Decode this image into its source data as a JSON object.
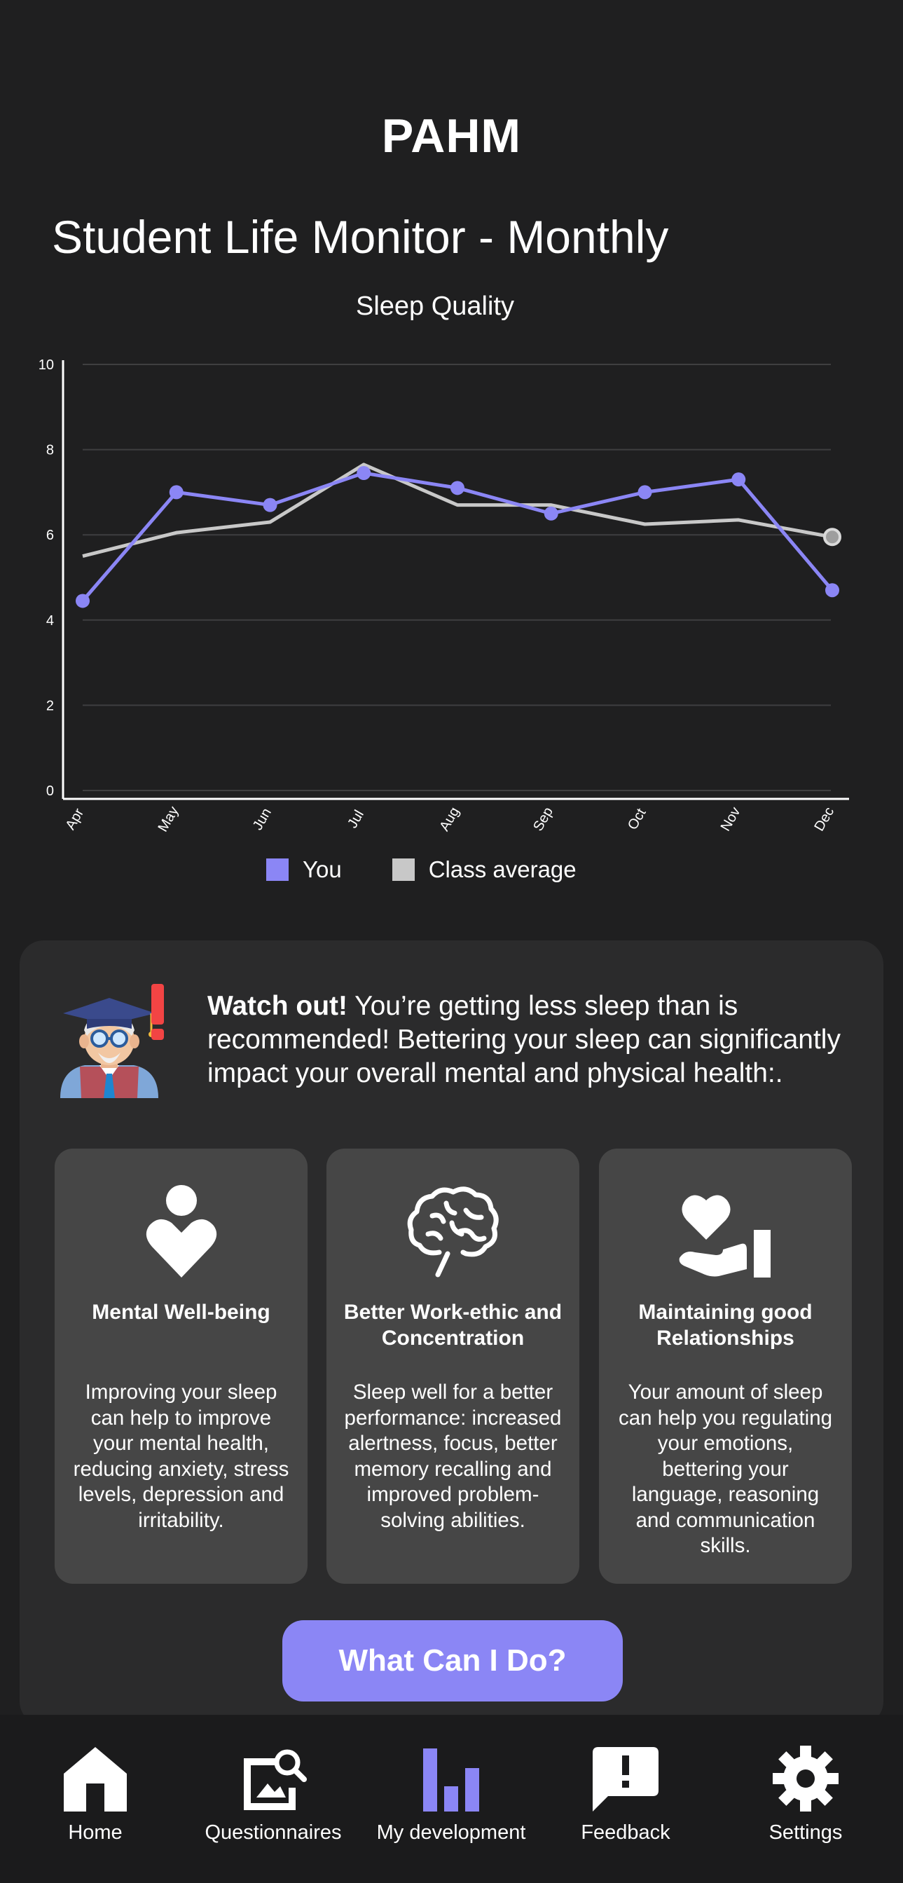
{
  "app": {
    "title": "PAHM"
  },
  "page": {
    "title": "Student Life Monitor - Monthly"
  },
  "chart_data": {
    "type": "line",
    "title": "Sleep Quality",
    "categories": [
      "Apr",
      "May",
      "Jun",
      "Jul",
      "Aug",
      "Sep",
      "Oct",
      "Nov",
      "Dec"
    ],
    "series": [
      {
        "name": "You",
        "color": "#8b86f5",
        "values": [
          4.45,
          7.0,
          6.7,
          7.45,
          7.1,
          6.5,
          7.0,
          7.3,
          4.7
        ]
      },
      {
        "name": "Class average",
        "color": "#c8c8c8",
        "values": [
          5.5,
          6.05,
          6.3,
          7.65,
          6.7,
          6.7,
          6.25,
          6.35,
          5.95
        ]
      }
    ],
    "ylim": [
      0,
      10
    ],
    "yticks": [
      "0",
      "2",
      "4",
      "6",
      "8",
      "10"
    ],
    "grid": true,
    "legend_position": "bottom"
  },
  "advice": {
    "warning_bold": "Watch out!",
    "warning_text": " You’re getting less sleep than is recommended! Bettering your sleep can significantly impact your overall mental and physical health:.",
    "avatar_icon": "professor-warning-icon",
    "benefits": [
      {
        "icon": "heart-person-icon",
        "title": "Mental Well-being",
        "text": "Improving your sleep can help to improve your mental health, reducing anxiety, stress levels, depression and irritability."
      },
      {
        "icon": "brain-icon",
        "title": "Better Work-ethic and Concentration",
        "text": "Sleep well for a better performance: increased alertness, focus, better memory recalling and improved problem-solving abilities."
      },
      {
        "icon": "hand-heart-icon",
        "title": "Maintaining good Relationships",
        "text": "Your amount of sleep can help you regulating your emotions, bettering your language, reasoning and communication skills."
      }
    ],
    "cta_label": "What Can I Do?"
  },
  "nav": {
    "active_color": "#8b86f5",
    "items": [
      {
        "label": "Home",
        "icon": "home-icon",
        "active": false
      },
      {
        "label": "Questionnaires",
        "icon": "image-search-icon",
        "active": false
      },
      {
        "label": "My development",
        "icon": "bar-chart-icon",
        "active": true
      },
      {
        "label": "Feedback",
        "icon": "feedback-icon",
        "active": false
      },
      {
        "label": "Settings",
        "icon": "gear-icon",
        "active": false
      }
    ]
  }
}
